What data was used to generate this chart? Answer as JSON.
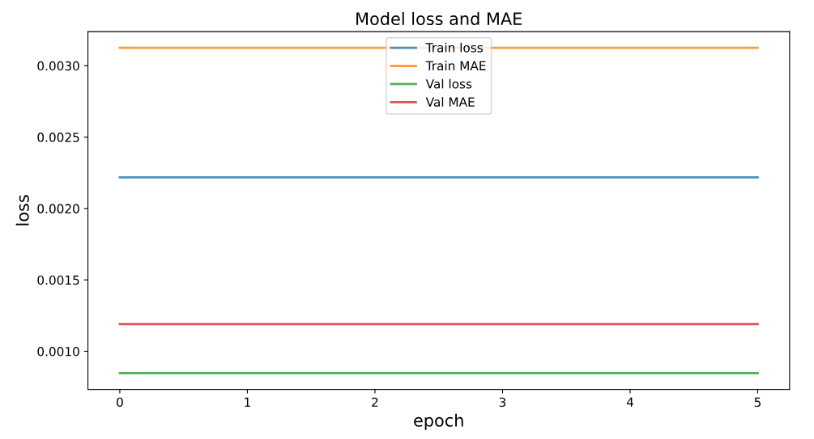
{
  "chart_data": {
    "type": "line",
    "title": "Model loss and MAE",
    "xlabel": "epoch",
    "ylabel": "loss",
    "x": [
      0,
      5
    ],
    "series": [
      {
        "name": "Train loss",
        "color": "#1f77b4",
        "values": [
          0.002218,
          0.002218
        ]
      },
      {
        "name": "Train MAE",
        "color": "#ff7f0e",
        "values": [
          0.003125,
          0.003125
        ]
      },
      {
        "name": "Val loss",
        "color": "#2ca02c",
        "values": [
          0.000847,
          0.000847
        ]
      },
      {
        "name": "Val MAE",
        "color": "#d62728",
        "values": [
          0.00119,
          0.00119
        ]
      }
    ],
    "xlim": [
      -0.25,
      5.25
    ],
    "xticks": [
      0,
      1,
      2,
      3,
      4,
      5
    ],
    "ylim": [
      0.000733,
      0.003239
    ],
    "yticks": [
      {
        "value": 0.001,
        "label": "0.0010"
      },
      {
        "value": 0.0015,
        "label": "0.0015"
      },
      {
        "value": 0.002,
        "label": "0.0020"
      },
      {
        "value": 0.0025,
        "label": "0.0025"
      },
      {
        "value": 0.003,
        "label": "0.0030"
      }
    ],
    "legend": "top",
    "grid": false,
    "marker": "none",
    "line_style": "solid"
  }
}
